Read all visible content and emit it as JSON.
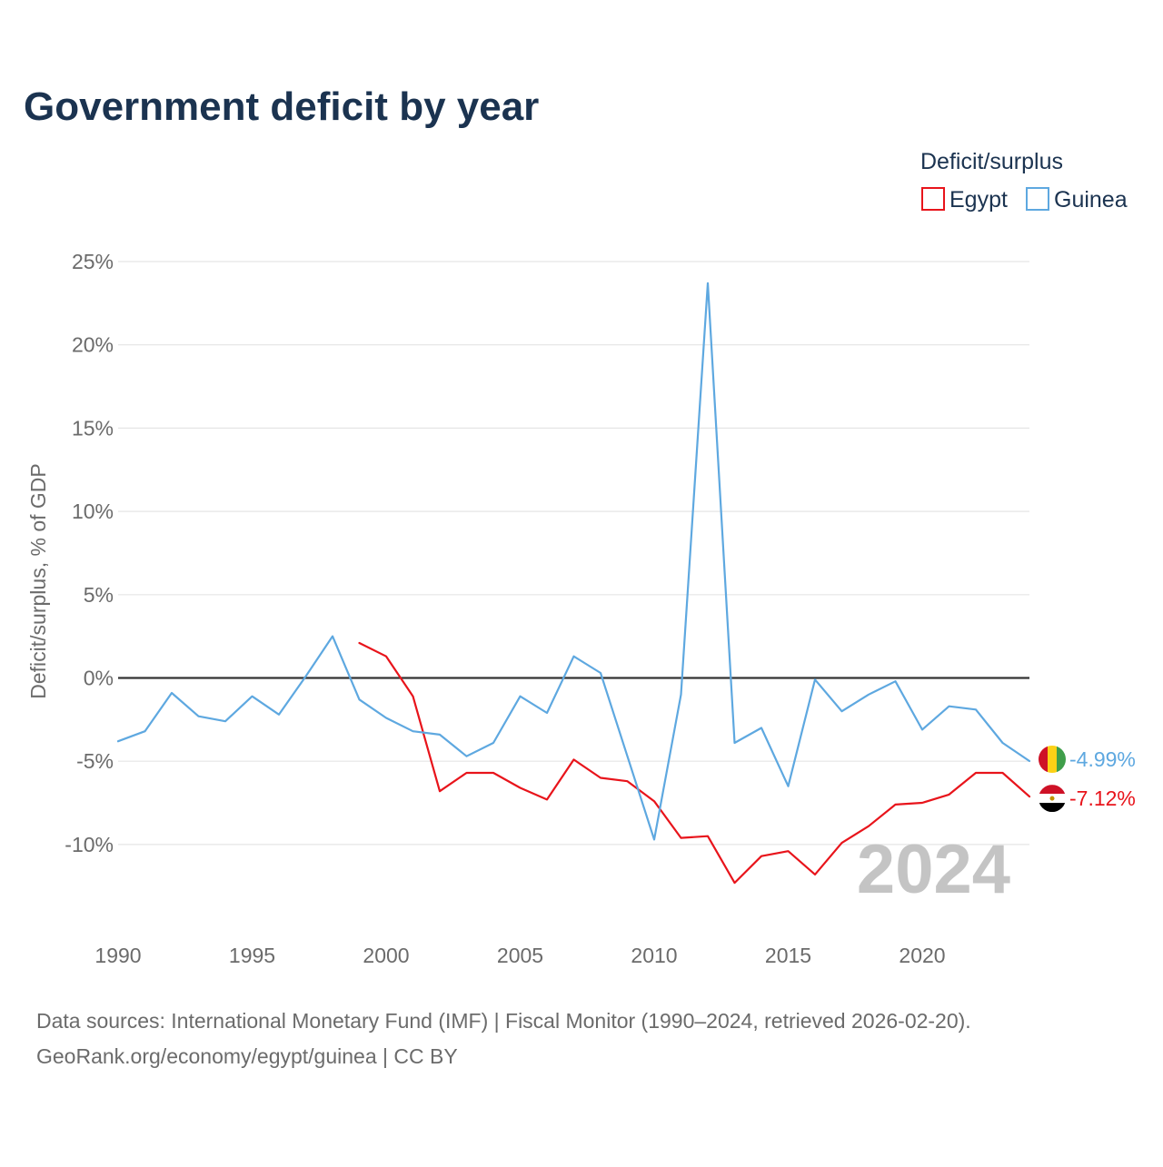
{
  "chart_data": {
    "type": "line",
    "title": "Government deficit by year",
    "ylabel": "Deficit/surplus, % of GDP",
    "xlabel": "",
    "xlim": [
      1990,
      2024
    ],
    "ylim": [
      -14.5,
      25
    ],
    "x_ticks": [
      1990,
      1995,
      2000,
      2005,
      2010,
      2015,
      2020
    ],
    "y_ticks": [
      25,
      20,
      15,
      10,
      5,
      0,
      -5,
      -10
    ],
    "y_tick_labels": [
      "25%",
      "20%",
      "15%",
      "10%",
      "5%",
      "0%",
      "-5%",
      "-10%"
    ],
    "legend_title": "Deficit/surplus",
    "legend_position": "top-right",
    "watermark_year": "2024",
    "series": [
      {
        "name": "Egypt",
        "color": "#e8141b",
        "end_label": "-7.12%",
        "flag": "egypt-flag",
        "x": [
          1999,
          2000,
          2001,
          2002,
          2003,
          2004,
          2005,
          2006,
          2007,
          2008,
          2009,
          2010,
          2011,
          2012,
          2013,
          2014,
          2015,
          2016,
          2017,
          2018,
          2019,
          2020,
          2021,
          2022,
          2023,
          2024
        ],
        "values": [
          2.1,
          1.3,
          -1.1,
          -6.8,
          -5.7,
          -5.7,
          -6.6,
          -7.3,
          -4.9,
          -6.0,
          -6.2,
          -7.4,
          -9.6,
          -9.5,
          -12.3,
          -10.7,
          -10.4,
          -11.8,
          -9.9,
          -8.9,
          -7.6,
          -7.5,
          -7.0,
          -5.7,
          -5.7,
          -7.12
        ]
      },
      {
        "name": "Guinea",
        "color": "#5ea8e0",
        "end_label": "-4.99%",
        "flag": "guinea-flag",
        "x": [
          1990,
          1991,
          1992,
          1993,
          1994,
          1995,
          1996,
          1997,
          1998,
          1999,
          2000,
          2001,
          2002,
          2003,
          2004,
          2005,
          2006,
          2007,
          2008,
          2009,
          2010,
          2011,
          2012,
          2013,
          2014,
          2015,
          2016,
          2017,
          2018,
          2019,
          2020,
          2021,
          2022,
          2023,
          2024
        ],
        "values": [
          -3.8,
          -3.2,
          -0.9,
          -2.3,
          -2.6,
          -1.1,
          -2.2,
          0.1,
          2.5,
          -1.3,
          -2.4,
          -3.2,
          -3.4,
          -4.7,
          -3.9,
          -1.1,
          -2.1,
          1.3,
          0.3,
          -4.7,
          -9.7,
          -1.0,
          23.7,
          -3.9,
          -3.0,
          -6.5,
          -0.1,
          -2.0,
          -1.0,
          -0.2,
          -3.1,
          -1.7,
          -1.9,
          -3.9,
          -4.99
        ]
      }
    ]
  },
  "footer": {
    "source_line": "Data sources: International Monetary Fund (IMF) | Fiscal Monitor (1990–2024, retrieved 2026-02-20).",
    "credit_line": "GeoRank.org/economy/egypt/guinea | CC BY"
  }
}
